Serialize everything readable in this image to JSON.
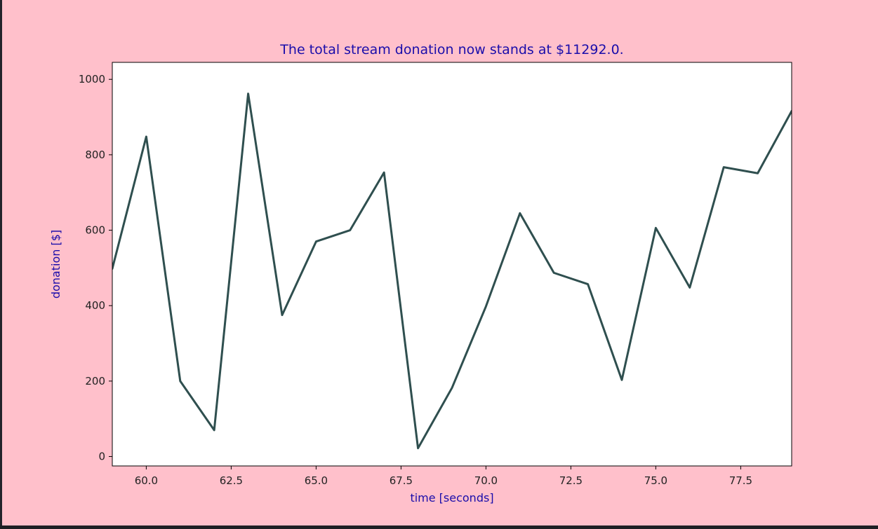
{
  "colors": {
    "figure_background": "#ffc0cb",
    "plot_background": "#ffffff",
    "line": "#2f4f4f",
    "label_text": "#1a0dab",
    "tick_text": "#222222",
    "axes_frame": "#000000"
  },
  "chart_data": {
    "type": "line",
    "title": "The total stream donation now stands at $11292.0.",
    "xlabel": "time [seconds]",
    "ylabel": "donation [$]",
    "xlim": [
      59,
      79
    ],
    "ylim": [
      -25,
      1045
    ],
    "xticks": [
      60.0,
      62.5,
      65.0,
      67.5,
      70.0,
      72.5,
      75.0,
      77.5
    ],
    "xtick_labels": [
      "60.0",
      "62.5",
      "65.0",
      "67.5",
      "70.0",
      "72.5",
      "75.0",
      "77.5"
    ],
    "yticks": [
      0,
      200,
      400,
      600,
      800,
      1000
    ],
    "ytick_labels": [
      "0",
      "200",
      "400",
      "600",
      "800",
      "1000"
    ],
    "grid": false,
    "series": [
      {
        "x": [
          59,
          60,
          61,
          62,
          63,
          64,
          65,
          66,
          67,
          68,
          69,
          70,
          71,
          72,
          73,
          74,
          75,
          76,
          77,
          78,
          79
        ],
        "values": [
          498,
          848,
          200,
          70,
          962,
          375,
          570,
          600,
          753,
          22,
          182,
          398,
          645,
          487,
          457,
          203,
          606,
          448,
          767,
          751,
          916
        ]
      }
    ]
  }
}
